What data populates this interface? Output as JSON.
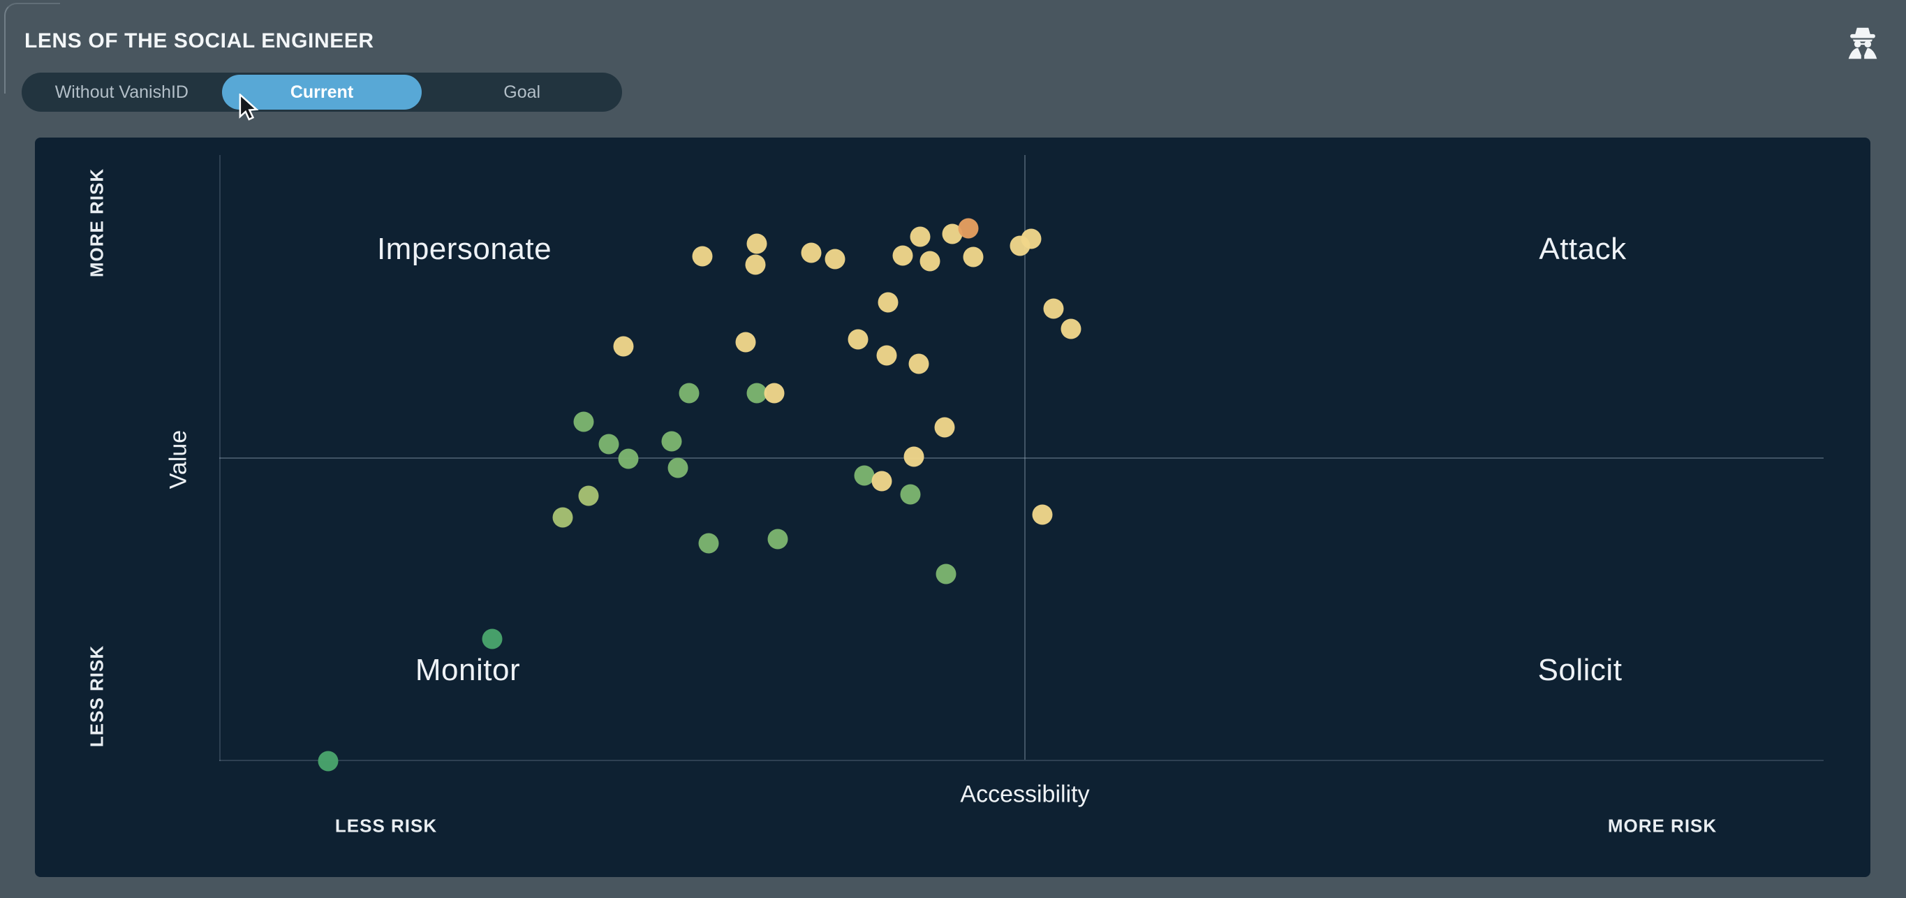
{
  "header": {
    "title": "LENS OF THE SOCIAL ENGINEER",
    "icon": "spy-icon"
  },
  "toggle": {
    "options": [
      {
        "label": "Without VanishID",
        "selected": false
      },
      {
        "label": "Current",
        "selected": true
      },
      {
        "label": "Goal",
        "selected": false
      }
    ]
  },
  "chart_data": {
    "type": "scatter",
    "quadrant_labels": {
      "top_left": "Impersonate",
      "top_right": "Attack",
      "bottom_left": "Monitor",
      "bottom_right": "Solicit"
    },
    "x_axis": {
      "label": "Accessibility",
      "min_label": "LESS RISK",
      "max_label": "MORE RISK",
      "range": [
        0,
        100
      ]
    },
    "y_axis": {
      "label": "Value",
      "min_label": "LESS RISK",
      "max_label": "MORE RISK",
      "range": [
        0,
        100
      ]
    },
    "quadrant_divider": {
      "x": 50.2,
      "y": 50.0
    },
    "grid": false,
    "point_colors": {
      "yellow": "#f0d68a",
      "orange": "#e69f60",
      "green": "#7db56f",
      "lightgreen": "#a8c272",
      "deepgreen": "#4aa46c"
    },
    "points": [
      {
        "x": 30.1,
        "y": 83.3,
        "c": "yellow"
      },
      {
        "x": 33.5,
        "y": 85.4,
        "c": "yellow"
      },
      {
        "x": 33.4,
        "y": 81.9,
        "c": "yellow"
      },
      {
        "x": 36.9,
        "y": 83.9,
        "c": "yellow"
      },
      {
        "x": 38.4,
        "y": 82.8,
        "c": "yellow"
      },
      {
        "x": 42.6,
        "y": 83.4,
        "c": "yellow"
      },
      {
        "x": 43.7,
        "y": 86.5,
        "c": "yellow"
      },
      {
        "x": 44.3,
        "y": 82.5,
        "c": "yellow"
      },
      {
        "x": 45.7,
        "y": 87.0,
        "c": "yellow"
      },
      {
        "x": 46.7,
        "y": 87.9,
        "c": "orange"
      },
      {
        "x": 47.0,
        "y": 83.2,
        "c": "yellow"
      },
      {
        "x": 49.9,
        "y": 85.0,
        "c": "yellow"
      },
      {
        "x": 50.6,
        "y": 86.2,
        "c": "yellow"
      },
      {
        "x": 41.7,
        "y": 75.7,
        "c": "yellow"
      },
      {
        "x": 25.2,
        "y": 68.4,
        "c": "yellow"
      },
      {
        "x": 32.8,
        "y": 69.1,
        "c": "yellow"
      },
      {
        "x": 39.8,
        "y": 69.6,
        "c": "yellow"
      },
      {
        "x": 41.6,
        "y": 66.9,
        "c": "yellow"
      },
      {
        "x": 43.6,
        "y": 65.6,
        "c": "yellow"
      },
      {
        "x": 52.0,
        "y": 74.7,
        "c": "yellow"
      },
      {
        "x": 53.1,
        "y": 71.3,
        "c": "yellow"
      },
      {
        "x": 29.3,
        "y": 60.7,
        "c": "green"
      },
      {
        "x": 33.5,
        "y": 60.7,
        "c": "green"
      },
      {
        "x": 34.6,
        "y": 60.7,
        "c": "yellow"
      },
      {
        "x": 22.7,
        "y": 56.0,
        "c": "green"
      },
      {
        "x": 24.3,
        "y": 52.3,
        "c": "green"
      },
      {
        "x": 25.5,
        "y": 49.9,
        "c": "green"
      },
      {
        "x": 28.2,
        "y": 52.8,
        "c": "green"
      },
      {
        "x": 28.6,
        "y": 48.4,
        "c": "green"
      },
      {
        "x": 45.2,
        "y": 55.1,
        "c": "yellow"
      },
      {
        "x": 43.3,
        "y": 50.2,
        "c": "yellow"
      },
      {
        "x": 40.2,
        "y": 47.1,
        "c": "green"
      },
      {
        "x": 41.3,
        "y": 46.2,
        "c": "yellow"
      },
      {
        "x": 43.1,
        "y": 44.0,
        "c": "green"
      },
      {
        "x": 21.4,
        "y": 40.2,
        "c": "lightgreen"
      },
      {
        "x": 23.0,
        "y": 43.8,
        "c": "lightgreen"
      },
      {
        "x": 30.5,
        "y": 35.9,
        "c": "green"
      },
      {
        "x": 34.8,
        "y": 36.6,
        "c": "green"
      },
      {
        "x": 51.3,
        "y": 40.7,
        "c": "yellow"
      },
      {
        "x": 45.3,
        "y": 30.9,
        "c": "green"
      },
      {
        "x": 17.0,
        "y": 20.2,
        "c": "deepgreen"
      },
      {
        "x": 6.8,
        "y": 0.0,
        "c": "deepgreen"
      }
    ]
  }
}
